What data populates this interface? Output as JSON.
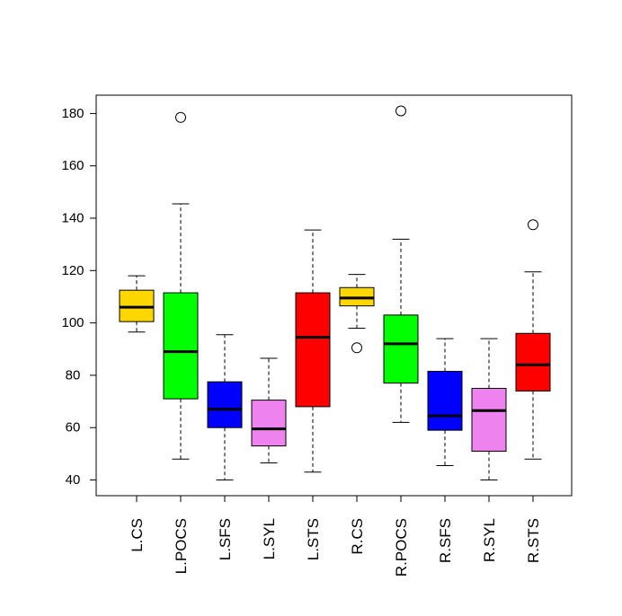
{
  "chart_data": {
    "type": "box",
    "title": "",
    "xlabel": "",
    "ylabel": "",
    "ylim": [
      34,
      187
    ],
    "yticks": [
      40,
      60,
      80,
      100,
      120,
      140,
      160,
      180
    ],
    "grid": false,
    "categories": [
      "L.CS",
      "L.POCS",
      "L.SFS",
      "L.SYL",
      "L.STS",
      "R.CS",
      "R.POCS",
      "R.SFS",
      "R.SYL",
      "R.STS"
    ],
    "colors": [
      "#FFD700",
      "#00FF00",
      "#0000FF",
      "#EE82EE",
      "#FF0000",
      "#FFD700",
      "#00FF00",
      "#0000FF",
      "#EE82EE",
      "#FF0000"
    ],
    "boxes": [
      {
        "whisker_low": 96.5,
        "q1": 100.5,
        "median": 106,
        "q3": 112.5,
        "whisker_high": 118,
        "outliers": []
      },
      {
        "whisker_low": 48,
        "q1": 71,
        "median": 89,
        "q3": 111.5,
        "whisker_high": 145.5,
        "outliers": [
          178.5
        ]
      },
      {
        "whisker_low": 40,
        "q1": 60,
        "median": 67,
        "q3": 77.5,
        "whisker_high": 95.5,
        "outliers": []
      },
      {
        "whisker_low": 46.5,
        "q1": 53,
        "median": 59.5,
        "q3": 70.5,
        "whisker_high": 86.5,
        "outliers": []
      },
      {
        "whisker_low": 43,
        "q1": 68,
        "median": 94.5,
        "q3": 111.5,
        "whisker_high": 135.5,
        "outliers": []
      },
      {
        "whisker_low": 98,
        "q1": 106.5,
        "median": 109.5,
        "q3": 113.5,
        "whisker_high": 118.5,
        "outliers": [
          90.5
        ]
      },
      {
        "whisker_low": 62,
        "q1": 77,
        "median": 92,
        "q3": 103,
        "whisker_high": 132,
        "outliers": [
          181
        ]
      },
      {
        "whisker_low": 45.5,
        "q1": 59,
        "median": 64.5,
        "q3": 81.5,
        "whisker_high": 94,
        "outliers": []
      },
      {
        "whisker_low": 40,
        "q1": 51,
        "median": 66.5,
        "q3": 75,
        "whisker_high": 94,
        "outliers": []
      },
      {
        "whisker_low": 48,
        "q1": 74,
        "median": 84,
        "q3": 96,
        "whisker_high": 119.5,
        "outliers": [
          137.5
        ]
      }
    ]
  }
}
